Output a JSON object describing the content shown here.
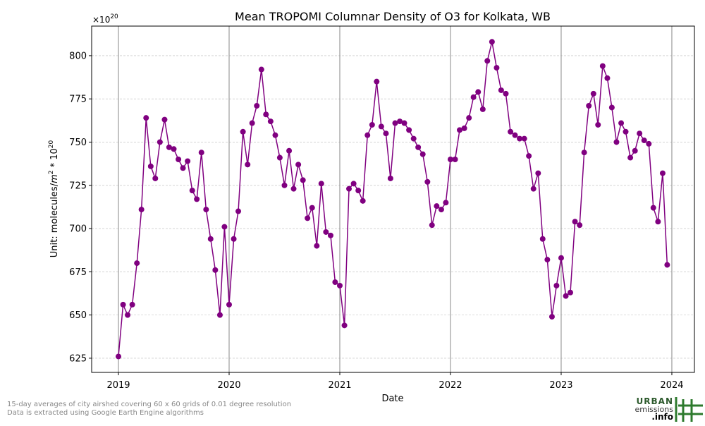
{
  "chart_data": {
    "type": "line",
    "title": "Mean TROPOMI Columnar Density of O3 for Kolkata, WB",
    "xlabel": "Date",
    "ylabel": [
      "Unit: molecules/",
      "m",
      "2",
      " * 10",
      "20"
    ],
    "y_offset_label": [
      "×10",
      "20"
    ],
    "color": "#800080",
    "grid": true,
    "x": [
      2019,
      2019.042,
      2019.083,
      2019.125,
      2019.167,
      2019.208,
      2019.25,
      2019.292,
      2019.333,
      2019.375,
      2019.417,
      2019.458,
      2019.5,
      2019.542,
      2019.583,
      2019.625,
      2019.667,
      2019.708,
      2019.75,
      2019.792,
      2019.833,
      2019.875,
      2019.917,
      2019.958,
      2020,
      2020.042,
      2020.083,
      2020.125,
      2020.167,
      2020.208,
      2020.25,
      2020.292,
      2020.333,
      2020.375,
      2020.417,
      2020.458,
      2020.5,
      2020.542,
      2020.583,
      2020.625,
      2020.667,
      2020.708,
      2020.75,
      2020.792,
      2020.833,
      2020.875,
      2020.917,
      2020.958,
      2021,
      2021.042,
      2021.083,
      2021.125,
      2021.167,
      2021.208,
      2021.25,
      2021.292,
      2021.333,
      2021.375,
      2021.417,
      2021.458,
      2021.5,
      2021.542,
      2021.583,
      2021.625,
      2021.667,
      2021.708,
      2021.75,
      2021.792,
      2021.833,
      2021.875,
      2021.917,
      2021.958,
      2022,
      2022.042,
      2022.083,
      2022.125,
      2022.167,
      2022.208,
      2022.25,
      2022.292,
      2022.333,
      2022.375,
      2022.417,
      2022.458,
      2022.5,
      2022.542,
      2022.583,
      2022.625,
      2022.667,
      2022.708,
      2022.75,
      2022.792,
      2022.833,
      2022.875,
      2022.917,
      2022.958,
      2023,
      2023.042,
      2023.083,
      2023.125,
      2023.167,
      2023.208,
      2023.25,
      2023.292,
      2023.333,
      2023.375,
      2023.417,
      2023.458,
      2023.5,
      2023.542,
      2023.583,
      2023.625,
      2023.667,
      2023.708,
      2023.75,
      2023.792,
      2023.833,
      2023.875,
      2023.917,
      2023.958
    ],
    "values": [
      626,
      656,
      650,
      656,
      680,
      711,
      764,
      736,
      729,
      750,
      763,
      747,
      746,
      740,
      735,
      739,
      722,
      717,
      744,
      711,
      694,
      676,
      650,
      701,
      656,
      694,
      710,
      756,
      737,
      761,
      771,
      792,
      766,
      762,
      754,
      741,
      725,
      745,
      723,
      737,
      728,
      706,
      712,
      690,
      726,
      698,
      696,
      669,
      667,
      644,
      723,
      726,
      722,
      716,
      754,
      760,
      785,
      759,
      755,
      729,
      761,
      762,
      761,
      757,
      752,
      747,
      743,
      727,
      702,
      713,
      711,
      715,
      740,
      740,
      757,
      758,
      764,
      776,
      779,
      769,
      797,
      808,
      793,
      780,
      778,
      756,
      754,
      752,
      752,
      742,
      723,
      732,
      694,
      682,
      649,
      667,
      683,
      661,
      663,
      704,
      702,
      744,
      771,
      778,
      760,
      794,
      787,
      770,
      750,
      761,
      756,
      741,
      745,
      755,
      751,
      749,
      712,
      704,
      732,
      679
    ],
    "xlim": [
      2018.758,
      2024.204
    ],
    "xticks": [
      2019,
      2020,
      2021,
      2022,
      2023,
      2024
    ],
    "ylim": [
      616.8,
      817.1
    ],
    "yticks": [
      625,
      650,
      675,
      700,
      725,
      750,
      775,
      800
    ]
  },
  "footer": {
    "notes": [
      "15-day averages of city airshed covering 60 x 60 grids of 0.01 degree resolution",
      "Data is extracted using Google Earth Engine algorithms"
    ],
    "logo": [
      "URBAN",
      "emissions",
      ".info"
    ]
  }
}
